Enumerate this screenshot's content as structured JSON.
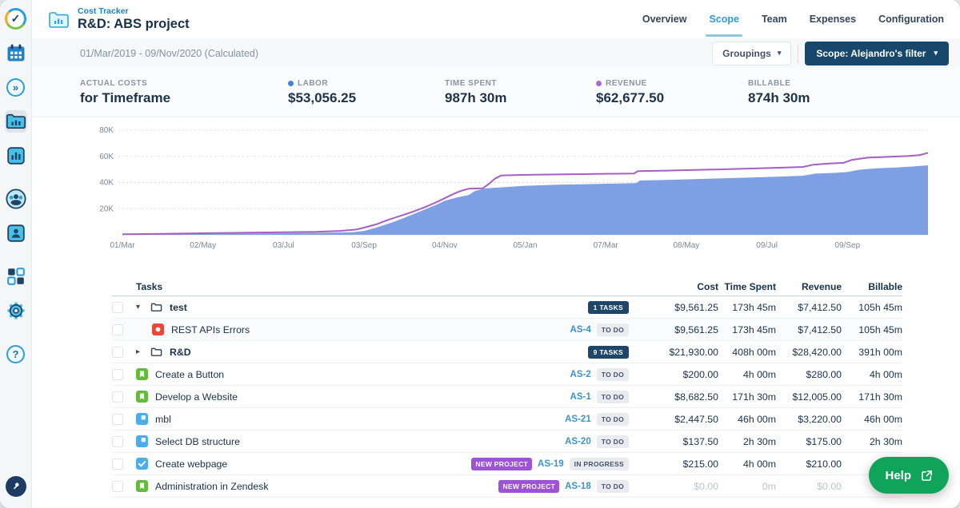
{
  "header": {
    "app_label": "Cost Tracker",
    "title": "R&D: ABS project",
    "tabs": [
      {
        "label": "Overview",
        "active": false
      },
      {
        "label": "Scope",
        "active": true
      },
      {
        "label": "Team",
        "active": false
      },
      {
        "label": "Expenses",
        "active": false
      },
      {
        "label": "Configuration",
        "active": false
      }
    ]
  },
  "toolbar": {
    "date_range": "01/Mar/2019 - 09/Nov/2020 (Calculated)",
    "groupings_label": "Groupings",
    "scope_label": "Scope: Alejandro's filter"
  },
  "stats": [
    {
      "label": "ACTUAL COSTS",
      "value": "for Timeframe"
    },
    {
      "label": "LABOR",
      "value": "$53,056.25",
      "dot": "#4285d9"
    },
    {
      "label": "TIME SPENT",
      "value": "987h 30m"
    },
    {
      "label": "REVENUE",
      "value": "$62,677.50",
      "dot": "#b168d4"
    },
    {
      "label": "BILLABLE",
      "value": "874h 30m"
    }
  ],
  "chart_data": {
    "type": "area",
    "title": "Cumulative labor cost and revenue over timeframe",
    "unit": "USD (thousands)",
    "x_range": [
      0,
      20
    ],
    "ylim": [
      0,
      80
    ],
    "grid": "dotted-horizontal",
    "legend_position": "none (dots shown in stats header)",
    "x_ticks": [
      {
        "label": "01/Mar",
        "x": 0
      },
      {
        "label": "02/May",
        "x": 2
      },
      {
        "label": "03/Jul",
        "x": 4
      },
      {
        "label": "03/Sep",
        "x": 6
      },
      {
        "label": "04/Nov",
        "x": 8
      },
      {
        "label": "05/Jan",
        "x": 10
      },
      {
        "label": "07/Mar",
        "x": 12
      },
      {
        "label": "08/May",
        "x": 14
      },
      {
        "label": "09/Jul",
        "x": 16
      },
      {
        "label": "09/Sep",
        "x": 18
      }
    ],
    "y_ticks": [
      {
        "label": "20K",
        "value": 20
      },
      {
        "label": "40K",
        "value": 40
      },
      {
        "label": "60K",
        "value": 60
      },
      {
        "label": "80K",
        "value": 80
      }
    ],
    "series": [
      {
        "name": "Labor",
        "style": "area",
        "color": "#7e9fe4",
        "points": [
          [
            0,
            0.2
          ],
          [
            1,
            0.4
          ],
          [
            2,
            0.7
          ],
          [
            3,
            1.0
          ],
          [
            4,
            1.3
          ],
          [
            5,
            1.6
          ],
          [
            5.7,
            2.0
          ],
          [
            6.0,
            3.0
          ],
          [
            6.3,
            5.5
          ],
          [
            6.7,
            9.5
          ],
          [
            7.0,
            13
          ],
          [
            7.4,
            18
          ],
          [
            7.8,
            23
          ],
          [
            8.0,
            26
          ],
          [
            8.3,
            28.5
          ],
          [
            8.6,
            30.5
          ],
          [
            8.75,
            33.5
          ],
          [
            9.0,
            35.5
          ],
          [
            9.4,
            36.3
          ],
          [
            10.0,
            37.5
          ],
          [
            10.8,
            38.3
          ],
          [
            11.6,
            38.8
          ],
          [
            12.4,
            39.3
          ],
          [
            12.75,
            39.6
          ],
          [
            12.85,
            41.5
          ],
          [
            13.5,
            42.0
          ],
          [
            14.2,
            42.6
          ],
          [
            14.9,
            43.2
          ],
          [
            15.6,
            43.8
          ],
          [
            16.3,
            44.5
          ],
          [
            16.9,
            45.2
          ],
          [
            17.2,
            46.8
          ],
          [
            17.7,
            47.4
          ],
          [
            18.0,
            48.0
          ],
          [
            18.3,
            49.8
          ],
          [
            18.7,
            50.8
          ],
          [
            19.2,
            51.5
          ],
          [
            19.6,
            52.2
          ],
          [
            20,
            53.1
          ]
        ]
      },
      {
        "name": "Revenue",
        "style": "line",
        "color": "#a55fc3",
        "points": [
          [
            0,
            0.4
          ],
          [
            1,
            0.8
          ],
          [
            2,
            1.2
          ],
          [
            3,
            1.6
          ],
          [
            4,
            2.0
          ],
          [
            4.8,
            2.3
          ],
          [
            5.4,
            3.0
          ],
          [
            5.8,
            4.0
          ],
          [
            6.0,
            5.5
          ],
          [
            6.3,
            8.0
          ],
          [
            6.6,
            11.5
          ],
          [
            6.9,
            14.5
          ],
          [
            7.2,
            17.5
          ],
          [
            7.5,
            21
          ],
          [
            7.8,
            25
          ],
          [
            8.0,
            28
          ],
          [
            8.2,
            31
          ],
          [
            8.4,
            33.5
          ],
          [
            8.6,
            35.3
          ],
          [
            8.95,
            35.6
          ],
          [
            9.1,
            39
          ],
          [
            9.25,
            43
          ],
          [
            9.4,
            45.4
          ],
          [
            9.9,
            45.8
          ],
          [
            10.6,
            46.1
          ],
          [
            11.4,
            46.4
          ],
          [
            12.2,
            46.7
          ],
          [
            12.7,
            46.9
          ],
          [
            12.8,
            48.7
          ],
          [
            13.5,
            49.1
          ],
          [
            14.2,
            49.6
          ],
          [
            14.9,
            50.1
          ],
          [
            15.6,
            50.7
          ],
          [
            16.3,
            51.3
          ],
          [
            16.9,
            51.9
          ],
          [
            17.15,
            53.6
          ],
          [
            17.5,
            54.4
          ],
          [
            17.9,
            55.0
          ],
          [
            18.1,
            57.2
          ],
          [
            18.5,
            59.0
          ],
          [
            19.0,
            59.6
          ],
          [
            19.5,
            60.2
          ],
          [
            19.8,
            61.0
          ],
          [
            20,
            62.7
          ]
        ]
      }
    ]
  },
  "table": {
    "headers": {
      "tasks": "Tasks",
      "cost": "Cost",
      "time_spent": "Time Spent",
      "revenue": "Revenue",
      "billable": "Billable"
    },
    "rows": [
      {
        "kind": "group",
        "expanded": true,
        "icon": "folder",
        "name": "test",
        "count_badge": "1 TASKS",
        "cost": "$9,561.25",
        "time_spent": "173h 45m",
        "revenue": "$7,412.50",
        "billable": "105h 45m"
      },
      {
        "kind": "issue",
        "child": true,
        "icon": "bug",
        "name": "REST APIs Errors",
        "key": "AS-4",
        "status": "TO DO",
        "cost": "$9,561.25",
        "time_spent": "173h 45m",
        "revenue": "$7,412.50",
        "billable": "105h 45m"
      },
      {
        "kind": "group",
        "expanded": false,
        "icon": "folder",
        "name": "R&D",
        "count_badge": "9 TASKS",
        "cost": "$21,930.00",
        "time_spent": "408h 00m",
        "revenue": "$28,420.00",
        "billable": "391h 00m"
      },
      {
        "kind": "issue",
        "icon": "story",
        "name": "Create a Button",
        "key": "AS-2",
        "status": "TO DO",
        "cost": "$200.00",
        "time_spent": "4h 00m",
        "revenue": "$280.00",
        "billable": "4h 00m"
      },
      {
        "kind": "issue",
        "icon": "story",
        "name": "Develop a Website",
        "key": "AS-1",
        "status": "TO DO",
        "cost": "$8,682.50",
        "time_spent": "171h 30m",
        "revenue": "$12,005.00",
        "billable": "171h 30m"
      },
      {
        "kind": "issue",
        "icon": "subtask",
        "name": "mbl",
        "key": "AS-21",
        "status": "TO DO",
        "cost": "$2,447.50",
        "time_spent": "46h 00m",
        "revenue": "$3,220.00",
        "billable": "46h 00m"
      },
      {
        "kind": "issue",
        "icon": "subtask",
        "name": "Select DB structure",
        "key": "AS-20",
        "status": "TO DO",
        "cost": "$137.50",
        "time_spent": "2h 30m",
        "revenue": "$175.00",
        "billable": "2h 30m"
      },
      {
        "kind": "issue",
        "icon": "task",
        "name": "Create webpage",
        "project_badge": "NEW PROJECT",
        "key": "AS-19",
        "status": "IN PROGRESS",
        "cost": "$215.00",
        "time_spent": "4h 00m",
        "revenue": "$210.00",
        "billable": ""
      },
      {
        "kind": "issue",
        "icon": "story",
        "name": "Administration in Zendesk",
        "project_badge": "NEW PROJECT",
        "key": "AS-18",
        "status": "TO DO",
        "cost": "$0.00",
        "time_spent": "0m",
        "revenue": "$0.00",
        "billable": "",
        "faded_values": true
      }
    ]
  },
  "help": {
    "label": "Help"
  },
  "colors": {
    "accent_blue": "#2f9bd4",
    "navy_button": "#17476b",
    "area_fill": "#7e9fe4",
    "revenue_line": "#a55fc3",
    "help_green": "#0fa45a",
    "new_project_purple": "#9c53d4",
    "count_badge_navy": "#1d4668",
    "sidebar_icon_blue": "#2a9fd8"
  }
}
